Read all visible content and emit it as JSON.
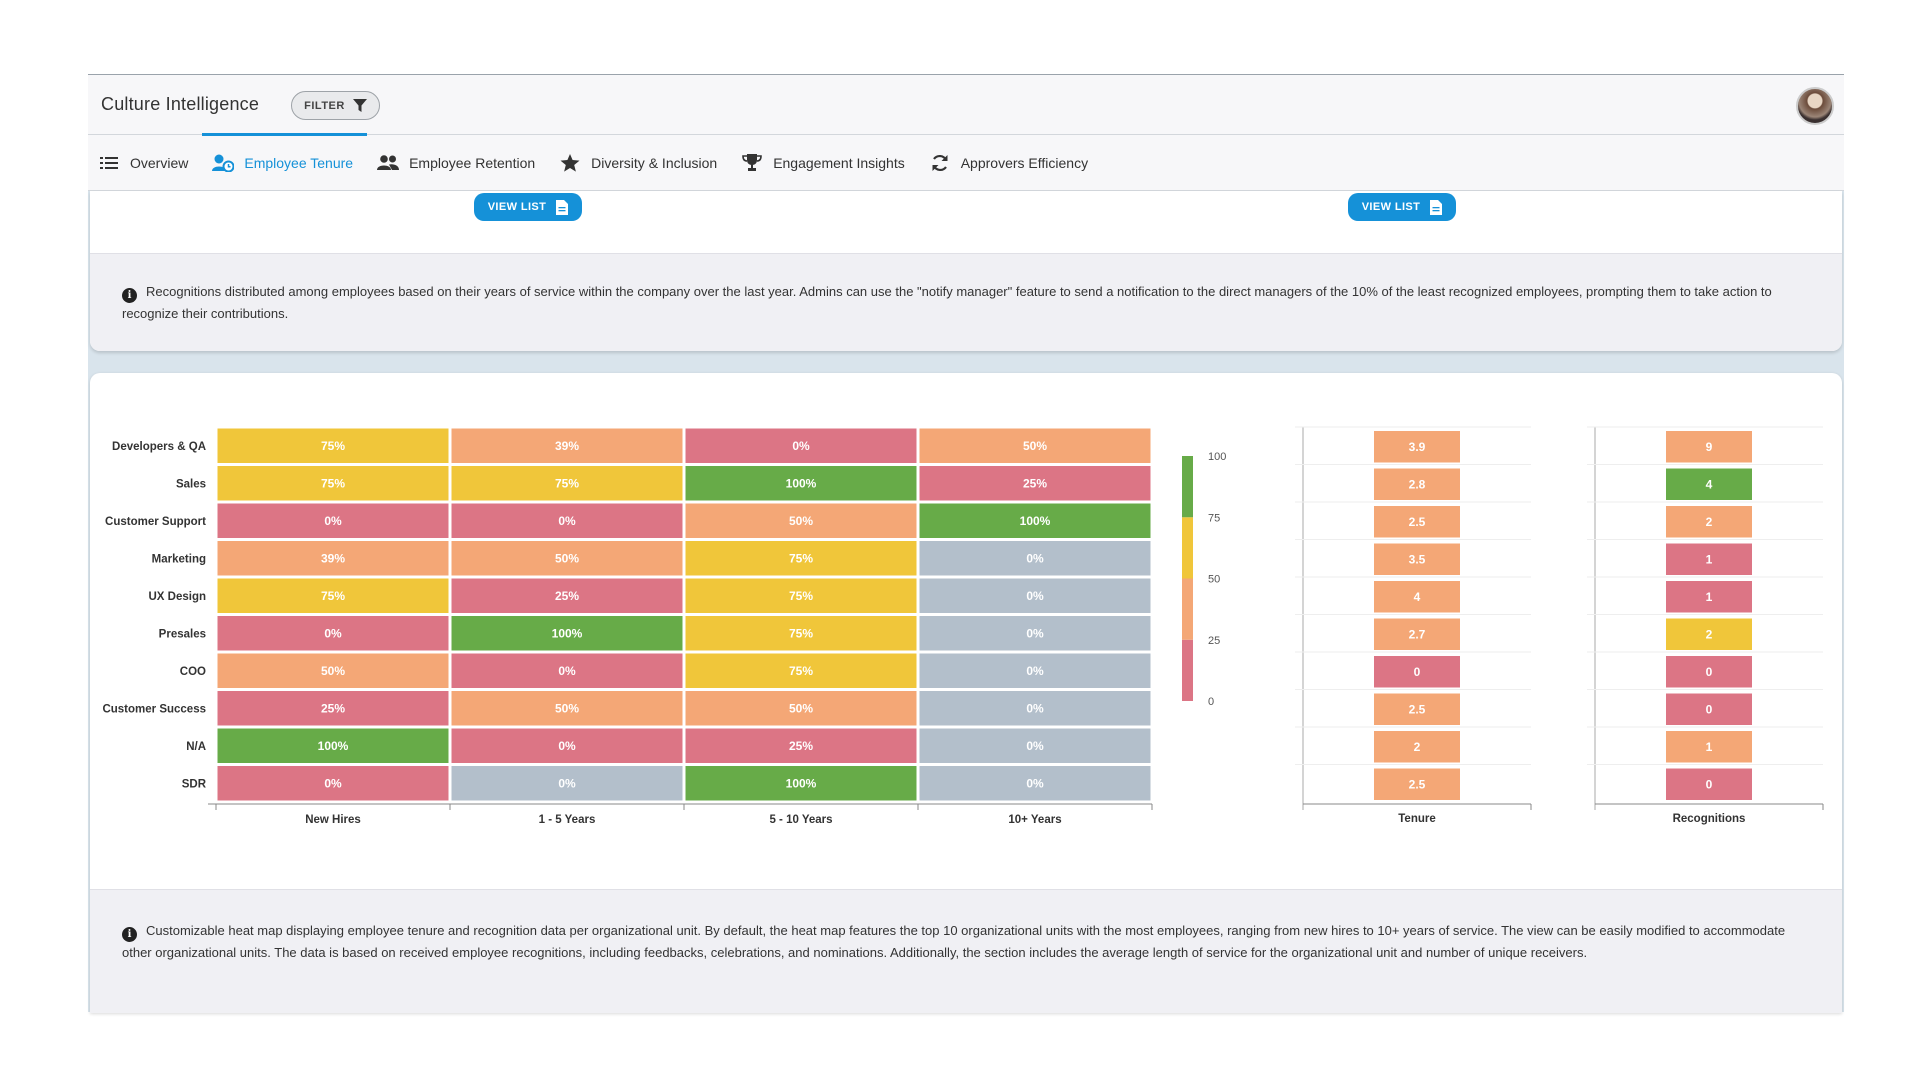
{
  "header": {
    "app_title": "Culture Intelligence",
    "filter_label": "FILTER"
  },
  "tabs": [
    {
      "label": "Overview",
      "icon": "list-icon",
      "active": false
    },
    {
      "label": "Employee Tenure",
      "icon": "user-clock-icon",
      "active": true
    },
    {
      "label": "Employee Retention",
      "icon": "users-icon",
      "active": false
    },
    {
      "label": "Diversity & Inclusion",
      "icon": "star-icon",
      "active": false
    },
    {
      "label": "Engagement Insights",
      "icon": "trophy-icon",
      "active": false
    },
    {
      "label": "Approvers Efficiency",
      "icon": "refresh-icon",
      "active": false
    }
  ],
  "top_card": {
    "view_list_label": "VIEW LIST",
    "info_text": "Recognitions distributed among employees based on their years of service within the company over the last year. Admins can use the \"notify manager\" feature to send a notification to the direct managers of the 10% of the least recognized employees, prompting them to take action to recognize their contributions."
  },
  "bottom_info_text": "Customizable heat map displaying employee tenure and recognition data per organizational unit. By default, the heat map features the top 10 organizational units with the most employees, ranging from new hires to 10+ years of service. The view can be easily modified to accommodate other organizational units. The data is based on received employee recognitions, including feedbacks, celebrations, and nominations. Additionally, the section includes the average length of service for the organizational unit and number of unique receivers.",
  "colors": {
    "red": "#dc7585",
    "orange": "#f4a776",
    "yellow": "#f0c63a",
    "green": "#67ab48",
    "gray": "#b3bfcb",
    "accent": "#1591d8"
  },
  "chart_data": [
    {
      "type": "heatmap",
      "rows": [
        "Developers & QA",
        "Sales",
        "Customer Support",
        "Marketing",
        "UX Design",
        "Presales",
        "COO",
        "Customer Success",
        "N/A",
        "SDR"
      ],
      "columns": [
        "New Hires",
        "1 - 5 Years",
        "5 - 10 Years",
        "10+ Years"
      ],
      "values": [
        [
          75,
          39,
          0,
          50
        ],
        [
          75,
          75,
          100,
          25
        ],
        [
          0,
          0,
          50,
          100
        ],
        [
          39,
          50,
          75,
          0
        ],
        [
          75,
          25,
          75,
          0
        ],
        [
          0,
          100,
          75,
          0
        ],
        [
          50,
          0,
          75,
          0
        ],
        [
          25,
          50,
          50,
          0
        ],
        [
          100,
          0,
          25,
          0
        ],
        [
          0,
          0,
          100,
          0
        ]
      ],
      "cell_colors": [
        [
          "yellow",
          "orange",
          "red",
          "orange"
        ],
        [
          "yellow",
          "yellow",
          "green",
          "red"
        ],
        [
          "red",
          "red",
          "orange",
          "green"
        ],
        [
          "orange",
          "orange",
          "yellow",
          "gray"
        ],
        [
          "yellow",
          "red",
          "yellow",
          "gray"
        ],
        [
          "red",
          "green",
          "yellow",
          "gray"
        ],
        [
          "orange",
          "red",
          "yellow",
          "gray"
        ],
        [
          "red",
          "orange",
          "orange",
          "gray"
        ],
        [
          "green",
          "red",
          "red",
          "gray"
        ],
        [
          "red",
          "gray",
          "green",
          "gray"
        ]
      ],
      "value_suffix": "%",
      "color_scale": {
        "min": 0,
        "max": 100,
        "ticks": [
          0,
          25,
          50,
          75,
          100
        ]
      }
    },
    {
      "type": "table",
      "column": "Tenure",
      "values": [
        3.9,
        2.8,
        2.5,
        3.5,
        4,
        2.7,
        0,
        2.5,
        2,
        2.5
      ],
      "cell_colors": [
        "orange",
        "orange",
        "orange",
        "orange",
        "orange",
        "orange",
        "red",
        "orange",
        "orange",
        "orange"
      ]
    },
    {
      "type": "table",
      "column": "Recognitions",
      "values": [
        9,
        4,
        2,
        1,
        1,
        2,
        0,
        0,
        1,
        0
      ],
      "cell_colors": [
        "orange",
        "green",
        "orange",
        "red",
        "red",
        "yellow",
        "red",
        "red",
        "orange",
        "red"
      ]
    }
  ]
}
